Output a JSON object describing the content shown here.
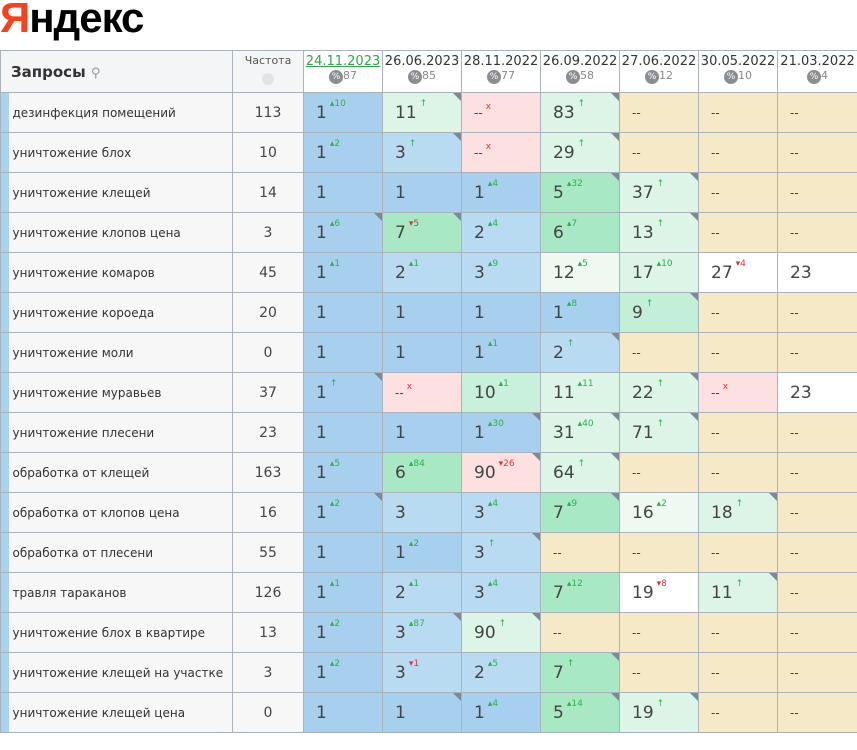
{
  "logo": {
    "text": "Яндекс"
  },
  "header": {
    "queries_label": "Запросы",
    "search_icon": "search-icon",
    "frequency_label": "Частота",
    "frequency_icon": "globe-icon",
    "percent_icon": "percent-icon",
    "dates": [
      {
        "date": "24.11.2023",
        "pct": "87",
        "active": true
      },
      {
        "date": "26.06.2023",
        "pct": "85"
      },
      {
        "date": "28.11.2022",
        "pct": "77"
      },
      {
        "date": "26.09.2022",
        "pct": "58"
      },
      {
        "date": "27.06.2022",
        "pct": "12"
      },
      {
        "date": "30.05.2022",
        "pct": "10"
      },
      {
        "date": "21.03.2022",
        "pct": "4"
      }
    ]
  },
  "colors": {
    "top1": "#a6d0ee",
    "top3": "#b8dbf2",
    "top10": "#a9e8c4",
    "top30": "#dcf5e7",
    "lost": "#fde0e0",
    "none": "#f6e9c8",
    "up": "#2eb04e",
    "down": "#e0353b"
  },
  "rows": [
    {
      "q": "дезинфекция помещений",
      "f": "113",
      "cells": [
        [
          "1",
          "▴10",
          "b1"
        ],
        [
          "11",
          "↑",
          "g2",
          1
        ],
        [
          "--",
          "x",
          "p"
        ],
        [
          "83",
          "↑",
          "g2",
          1
        ],
        [
          "--",
          "",
          "n"
        ],
        [
          "--",
          "",
          "n"
        ],
        [
          "--",
          "",
          "n"
        ]
      ]
    },
    {
      "q": "уничтожение блох",
      "f": "10",
      "cells": [
        [
          "1",
          "▴2",
          "b1"
        ],
        [
          "3",
          "↑",
          "b2",
          1
        ],
        [
          "--",
          "x",
          "p"
        ],
        [
          "29",
          "↑",
          "g2",
          1
        ],
        [
          "--",
          "",
          "n"
        ],
        [
          "--",
          "",
          "n"
        ],
        [
          "--",
          "",
          "n"
        ]
      ]
    },
    {
      "q": "уничтожение клещей",
      "f": "14",
      "cells": [
        [
          "1",
          "",
          "b1"
        ],
        [
          "1",
          "",
          "b1"
        ],
        [
          "1",
          "▴4",
          "b1"
        ],
        [
          "5",
          "▴32",
          "g1",
          1
        ],
        [
          "37",
          "↑",
          "g2",
          1
        ],
        [
          "--",
          "",
          "n"
        ],
        [
          "--",
          "",
          "n"
        ]
      ]
    },
    {
      "q": "уничтожение клопов цена",
      "f": "3",
      "cells": [
        [
          "1",
          "▴6",
          "b1",
          1
        ],
        [
          "7",
          "▾5",
          "g1",
          1
        ],
        [
          "2",
          "▴4",
          "b2"
        ],
        [
          "6",
          "▴7",
          "g1"
        ],
        [
          "13",
          "↑",
          "g2",
          1
        ],
        [
          "--",
          "",
          "n"
        ],
        [
          "--",
          "",
          "n"
        ]
      ]
    },
    {
      "q": "уничтожение комаров",
      "f": "45",
      "cells": [
        [
          "1",
          "▴1",
          "b1"
        ],
        [
          "2",
          "▴1",
          "b2"
        ],
        [
          "3",
          "▴9",
          "b2"
        ],
        [
          "12",
          "▴5",
          "w2"
        ],
        [
          "17",
          "▴10",
          "g2"
        ],
        [
          "27",
          "▾4",
          "w"
        ],
        [
          "23",
          "",
          "w"
        ]
      ]
    },
    {
      "q": "уничтожение короеда",
      "f": "20",
      "cells": [
        [
          "1",
          "",
          "b1"
        ],
        [
          "1",
          "",
          "b1"
        ],
        [
          "1",
          "",
          "b1"
        ],
        [
          "1",
          "▴8",
          "b1"
        ],
        [
          "9",
          "↑",
          "g1l",
          1
        ],
        [
          "--",
          "",
          "n"
        ],
        [
          "--",
          "",
          "n"
        ]
      ]
    },
    {
      "q": "уничтожение моли",
      "f": "0",
      "cells": [
        [
          "1",
          "",
          "b1"
        ],
        [
          "1",
          "",
          "b1"
        ],
        [
          "1",
          "▴1",
          "b1"
        ],
        [
          "2",
          "↑",
          "b2",
          1
        ],
        [
          "--",
          "",
          "n"
        ],
        [
          "--",
          "",
          "n"
        ],
        [
          "--",
          "",
          "n"
        ]
      ]
    },
    {
      "q": "уничтожение муравьев",
      "f": "37",
      "cells": [
        [
          "1",
          "↑",
          "b1",
          1
        ],
        [
          "--",
          "x",
          "p"
        ],
        [
          "10",
          "▴1",
          "g3"
        ],
        [
          "11",
          "▴11",
          "g2"
        ],
        [
          "22",
          "↑",
          "g2",
          1
        ],
        [
          "--",
          "x",
          "p"
        ],
        [
          "23",
          "",
          "w"
        ]
      ]
    },
    {
      "q": "уничтожение плесени",
      "f": "23",
      "cells": [
        [
          "1",
          "",
          "b1"
        ],
        [
          "1",
          "",
          "b1"
        ],
        [
          "1",
          "▴30",
          "b1",
          1
        ],
        [
          "31",
          "▴40",
          "g2",
          1
        ],
        [
          "71",
          "↑",
          "g2",
          1
        ],
        [
          "--",
          "",
          "n"
        ],
        [
          "--",
          "",
          "n"
        ]
      ]
    },
    {
      "q": "обработка от клещей",
      "f": "163",
      "cells": [
        [
          "1",
          "▴5",
          "b1"
        ],
        [
          "6",
          "▴84",
          "g1"
        ],
        [
          "90",
          "▾26",
          "p",
          1
        ],
        [
          "64",
          "↑",
          "g2",
          1
        ],
        [
          "--",
          "",
          "n"
        ],
        [
          "--",
          "",
          "n"
        ],
        [
          "--",
          "",
          "n"
        ]
      ]
    },
    {
      "q": "обработка от клопов цена",
      "f": "16",
      "cells": [
        [
          "1",
          "▴2",
          "b1",
          1
        ],
        [
          "3",
          "",
          "b2"
        ],
        [
          "3",
          "▴4",
          "b2"
        ],
        [
          "7",
          "▴9",
          "g1",
          1
        ],
        [
          "16",
          "▴2",
          "w2"
        ],
        [
          "18",
          "↑",
          "g2",
          1
        ],
        [
          "--",
          "",
          "n"
        ]
      ]
    },
    {
      "q": "обработка от плесени",
      "f": "55",
      "cells": [
        [
          "1",
          "",
          "b1"
        ],
        [
          "1",
          "▴2",
          "b1"
        ],
        [
          "3",
          "↑",
          "b2",
          1
        ],
        [
          "--",
          "",
          "n"
        ],
        [
          "--",
          "",
          "n"
        ],
        [
          "--",
          "",
          "n"
        ],
        [
          "--",
          "",
          "n"
        ]
      ]
    },
    {
      "q": "травля тараканов",
      "f": "126",
      "cells": [
        [
          "1",
          "▴1",
          "b1"
        ],
        [
          "2",
          "▴1",
          "b2"
        ],
        [
          "3",
          "▴4",
          "b2"
        ],
        [
          "7",
          "▴12",
          "g1"
        ],
        [
          "19",
          "▾8",
          "w"
        ],
        [
          "11",
          "↑",
          "g2",
          1
        ],
        [
          "--",
          "",
          "n"
        ]
      ]
    },
    {
      "q": "уничтожение блох в квартире",
      "f": "13",
      "cells": [
        [
          "1",
          "▴2",
          "b1"
        ],
        [
          "3",
          "▴87",
          "b2",
          1
        ],
        [
          "90",
          "↑",
          "g2",
          1
        ],
        [
          "--",
          "",
          "n"
        ],
        [
          "--",
          "",
          "n"
        ],
        [
          "--",
          "",
          "n"
        ],
        [
          "--",
          "",
          "n"
        ]
      ]
    },
    {
      "q": "уничтожение клещей на участке",
      "f": "3",
      "cells": [
        [
          "1",
          "▴2",
          "b1"
        ],
        [
          "3",
          "▾1",
          "b2"
        ],
        [
          "2",
          "▴5",
          "b2"
        ],
        [
          "7",
          "↑",
          "g1",
          1
        ],
        [
          "--",
          "",
          "n"
        ],
        [
          "--",
          "",
          "n"
        ],
        [
          "--",
          "",
          "n"
        ]
      ]
    },
    {
      "q": "уничтожение клещей цена",
      "f": "0",
      "cells": [
        [
          "1",
          "",
          "b1"
        ],
        [
          "1",
          "",
          "b1",
          1
        ],
        [
          "1",
          "▴4",
          "b1"
        ],
        [
          "5",
          "▴14",
          "g1",
          1
        ],
        [
          "19",
          "↑",
          "g2",
          1
        ],
        [
          "--",
          "",
          "n"
        ],
        [
          "--",
          "",
          "n"
        ]
      ]
    }
  ]
}
